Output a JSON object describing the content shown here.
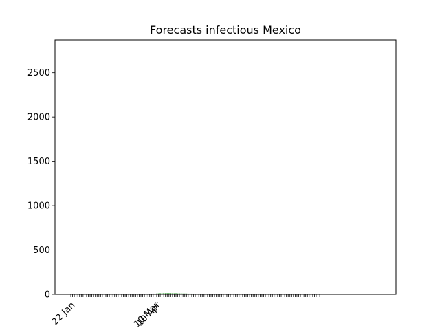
{
  "chart_data": {
    "type": "bar",
    "title": "Forecasts infectious Mexico",
    "xlabel": "",
    "ylabel": "",
    "ylim": [
      0,
      2870
    ],
    "yticks": [
      0,
      500,
      1000,
      1500,
      2000,
      2500
    ],
    "x_tick_labels": [
      {
        "index": 0,
        "label": "22 Jan"
      },
      {
        "index": 48,
        "label": "10 Mar"
      },
      {
        "index": 49,
        "label": "10 Apr"
      }
    ],
    "grid": false,
    "series": [
      {
        "color": "#0000ff",
        "values": [
          0,
          0,
          0,
          0,
          0,
          0,
          0,
          0,
          0,
          0,
          0,
          0,
          0,
          0,
          0,
          0,
          0,
          0,
          0,
          0,
          0,
          0,
          0,
          0,
          0,
          0,
          0,
          0,
          0,
          0,
          0,
          0,
          0,
          0,
          0,
          0,
          0,
          0,
          0,
          1,
          2,
          3,
          4,
          5,
          5,
          6,
          7,
          8,
          7
        ]
      },
      {
        "color": "#008000",
        "values": [
          0,
          0,
          0,
          0,
          0,
          0,
          0,
          0,
          0,
          0,
          0,
          0,
          0,
          0,
          0,
          0,
          0,
          0,
          0,
          0,
          0,
          0,
          0,
          0,
          0,
          0,
          0,
          0,
          0,
          0,
          0,
          0,
          0,
          0,
          0,
          0,
          0,
          0,
          0,
          0,
          0,
          0,
          0,
          0,
          0,
          0,
          0,
          0,
          0,
          9,
          10,
          11,
          11,
          12,
          12,
          12,
          12,
          12,
          11,
          11,
          11,
          10,
          10,
          10,
          9,
          9,
          9,
          8,
          8,
          8,
          7,
          7,
          7,
          6,
          6,
          6,
          6,
          5,
          5,
          5,
          5,
          4,
          4,
          4,
          4,
          4,
          3,
          3,
          3,
          3,
          3,
          3,
          2,
          2,
          2,
          2,
          2,
          2,
          2,
          2,
          2,
          1,
          1,
          1,
          1,
          1,
          1,
          1,
          1,
          1,
          1,
          1,
          1,
          1,
          1,
          1,
          1,
          1,
          1,
          1,
          1,
          1,
          1,
          1,
          1,
          1,
          1,
          1,
          1,
          1,
          1,
          1,
          1,
          1,
          1,
          1,
          1,
          1,
          1,
          1,
          1,
          1,
          1
        ]
      }
    ]
  }
}
